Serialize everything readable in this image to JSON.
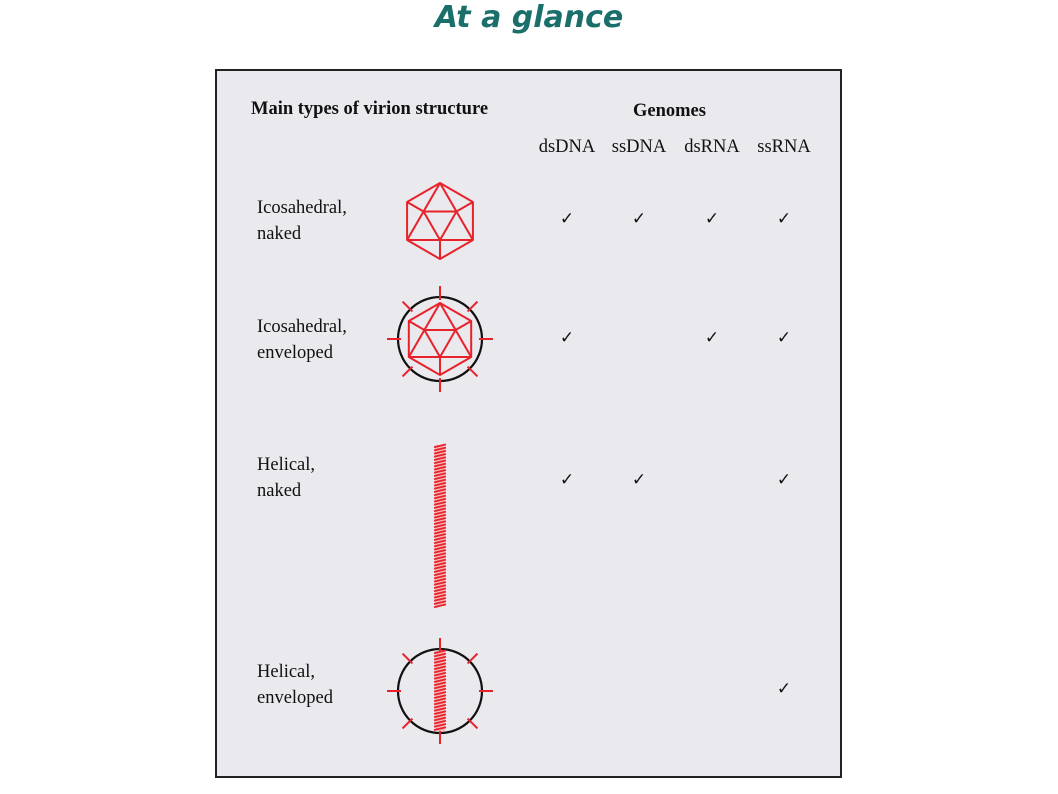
{
  "title": "At a glance",
  "headers": {
    "structure": "Main types of virion structure",
    "genomes": "Genomes"
  },
  "genome_types": [
    "dsDNA",
    "ssDNA",
    "dsRNA",
    "ssRNA"
  ],
  "check_glyph": "✓",
  "rows": [
    {
      "line1": "Icosahedral,",
      "line2": "naked",
      "icon": "icosahedral-naked-icon",
      "checks": [
        true,
        true,
        true,
        true
      ]
    },
    {
      "line1": "Icosahedral,",
      "line2": "enveloped",
      "icon": "icosahedral-enveloped-icon",
      "checks": [
        true,
        false,
        true,
        true
      ]
    },
    {
      "line1": "Helical,",
      "line2": "naked",
      "icon": "helical-naked-icon",
      "checks": [
        true,
        true,
        false,
        true
      ]
    },
    {
      "line1": "Helical,",
      "line2": "enveloped",
      "icon": "helical-enveloped-icon",
      "checks": [
        false,
        false,
        false,
        true
      ]
    }
  ],
  "colors": {
    "title": "#1a6f6b",
    "panel_bg": "#e9e9ee",
    "capsid": "#e8222a",
    "envelope": "#111111"
  }
}
